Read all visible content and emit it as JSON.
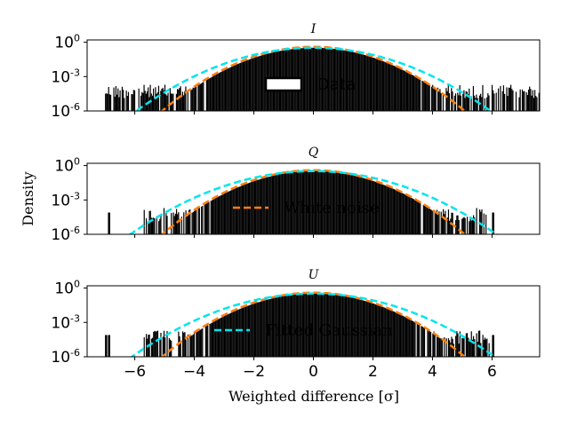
{
  "chart_data": {
    "type": "area",
    "ylabel": "Density",
    "xlabel": "Weighted difference [σ]",
    "xlim": [
      -7.6,
      7.6
    ],
    "ylim_log10": [
      -6,
      0.2
    ],
    "y_scale": "log",
    "x_ticks": [
      -6,
      -4,
      -2,
      0,
      2,
      4,
      6
    ],
    "x_tick_labels": [
      "−6",
      "−4",
      "−2",
      "0",
      "2",
      "4",
      "6"
    ],
    "y_ticks": [
      {
        "base": "10",
        "exp": "0"
      },
      {
        "base": "10",
        "exp": "-3"
      },
      {
        "base": "10",
        "exp": "-6"
      }
    ],
    "series_style": {
      "data": {
        "color": "#000000"
      },
      "white_noise": {
        "color": "#ff7f0e",
        "dash": "dashed"
      },
      "fitted_gaussian": {
        "color": "#00e5ee",
        "dash": "dashed"
      }
    },
    "panels": [
      {
        "title": "I",
        "legend_label": "Data",
        "legend_kind": "data",
        "data_range": [
          -7.0,
          7.7
        ],
        "fitted_sigma": 1.18,
        "fitted_peak": 0.33,
        "noise_peak": 0.4
      },
      {
        "title": "Q",
        "legend_label": "White noise",
        "legend_kind": "white_noise",
        "data_range": [
          -5.7,
          5.8
        ],
        "outliers": [
          -6.9,
          6.0
        ],
        "fitted_sigma": 1.22,
        "fitted_peak": 0.33,
        "noise_peak": 0.4
      },
      {
        "title": "U",
        "legend_label": "Fitted Gaussian",
        "legend_kind": "fitted_gaussian",
        "data_range": [
          -5.7,
          5.9
        ],
        "outliers": [
          -7.0,
          -6.9,
          6.0
        ],
        "fitted_sigma": 1.21,
        "fitted_peak": 0.33,
        "noise_peak": 0.4
      }
    ]
  }
}
